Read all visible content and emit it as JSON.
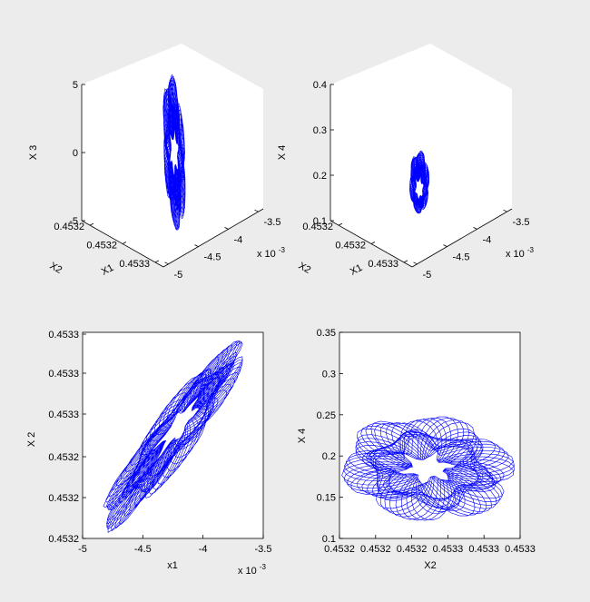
{
  "figure": {
    "background": "#ececec",
    "axes_background": "#ffffff",
    "line_color": "#0000ff"
  },
  "chart_data": [
    {
      "type": "line",
      "projection": "3d",
      "x": {
        "label": "X1",
        "ticks": [
          "-5",
          "-4.5",
          "-4",
          "-3.5"
        ],
        "exponent": "x 10",
        "exponent_power": "-3"
      },
      "y": {
        "label": "X2",
        "ticks": [
          "0.4532",
          "0.4532",
          "0.4533"
        ]
      },
      "z": {
        "label": "X 3",
        "ticks": [
          "-5",
          "0",
          "5"
        ],
        "range": [
          -5,
          5
        ]
      },
      "attractor": {
        "center_z": 0,
        "z_half_extent": 5.8,
        "hole_z": 0
      }
    },
    {
      "type": "line",
      "projection": "3d",
      "x": {
        "label": "X1",
        "ticks": [
          "-5",
          "-4.5",
          "-4",
          "-3.5"
        ],
        "exponent": "x 10",
        "exponent_power": "-3"
      },
      "y": {
        "label": "X2",
        "ticks": [
          "0.4532",
          "0.4532",
          "0.4533"
        ]
      },
      "z": {
        "label": "X 4",
        "ticks": [
          "0.1",
          "0.2",
          "0.3",
          "0.4"
        ],
        "range": [
          0.1,
          0.4
        ]
      },
      "attractor": {
        "center_z": 0.185,
        "z_half_extent": 0.07,
        "hole_z": 0.17
      }
    },
    {
      "type": "line",
      "projection": "2d",
      "x": {
        "label": "x1",
        "ticks": [
          "-5",
          "-4.5",
          "-4",
          "-3.5"
        ],
        "range": [
          -5,
          -3.5
        ],
        "exponent": "x 10",
        "exponent_power": "-3"
      },
      "y": {
        "label": "X 2",
        "ticks": [
          "0.4532",
          "0.4532",
          "0.4532",
          "0.4533",
          "0.4533",
          "0.4533"
        ],
        "range": [
          0,
          1
        ]
      },
      "attractor": {
        "from": [
          -4.85,
          0.03
        ],
        "to": [
          -3.65,
          0.96
        ],
        "center": [
          -4.2,
          0.55
        ],
        "hole_center": [
          -4.2,
          0.55
        ]
      }
    },
    {
      "type": "line",
      "projection": "2d",
      "x": {
        "label": "X2",
        "ticks": [
          "0.4532",
          "0.4532",
          "0.4532",
          "0.4533",
          "0.4533",
          "0.4533"
        ],
        "range": [
          0,
          1
        ]
      },
      "y": {
        "label": "X 4",
        "ticks": [
          "0.1",
          "0.15",
          "0.2",
          "0.25",
          "0.3",
          "0.35"
        ],
        "range": [
          0.1,
          0.35
        ]
      },
      "attractor": {
        "center": [
          0.49,
          0.185
        ],
        "x_half_extent": 0.49,
        "y_half_extent": 0.065,
        "hole_center": [
          0.49,
          0.185
        ]
      }
    }
  ]
}
